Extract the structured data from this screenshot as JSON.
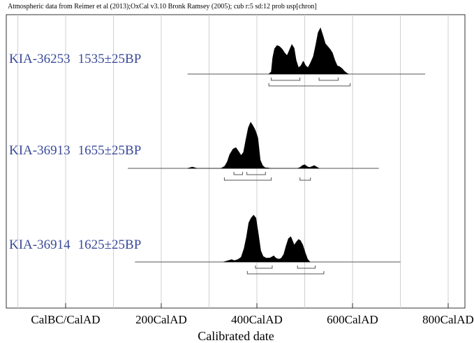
{
  "chart_data": {
    "type": "area",
    "title": "Atmospheric data from Reimer et al (2013);OxCal v3.10 Bronk Ramsey (2005); cub r:5 sd:12 prob usp[chron]",
    "xlabel": "Calibrated date",
    "x_ticks": [
      {
        "value": 0,
        "label": "CalBC/CalAD"
      },
      {
        "value": 200,
        "label": "200CalAD"
      },
      {
        "value": 400,
        "label": "400CalAD"
      },
      {
        "value": 600,
        "label": "600CalAD"
      },
      {
        "value": 800,
        "label": "800CalAD"
      }
    ],
    "xlim": [
      -125,
      825
    ],
    "grid": true,
    "series": [
      {
        "name": "KIA-36253",
        "age": "1535±25BP",
        "range_start": 255,
        "range_end": 752,
        "density": [
          [
            425,
            0
          ],
          [
            430,
            0.05
          ],
          [
            433,
            0.35
          ],
          [
            437,
            0.55
          ],
          [
            442,
            0.62
          ],
          [
            447,
            0.6
          ],
          [
            453,
            0.54
          ],
          [
            458,
            0.46
          ],
          [
            463,
            0.4
          ],
          [
            468,
            0.52
          ],
          [
            473,
            0.64
          ],
          [
            478,
            0.56
          ],
          [
            482,
            0.3
          ],
          [
            487,
            0.14
          ],
          [
            492,
            0.18
          ],
          [
            497,
            0.28
          ],
          [
            502,
            0.18
          ],
          [
            507,
            0.14
          ],
          [
            512,
            0.24
          ],
          [
            518,
            0.38
          ],
          [
            523,
            0.63
          ],
          [
            528,
            0.9
          ],
          [
            533,
            1.0
          ],
          [
            538,
            0.84
          ],
          [
            543,
            0.66
          ],
          [
            548,
            0.6
          ],
          [
            553,
            0.54
          ],
          [
            558,
            0.46
          ],
          [
            563,
            0.3
          ],
          [
            568,
            0.18
          ],
          [
            573,
            0.16
          ],
          [
            578,
            0.12
          ],
          [
            583,
            0.06
          ],
          [
            588,
            0.02
          ],
          [
            592,
            0
          ]
        ],
        "sigma1": [
          [
            430,
            490
          ],
          [
            530,
            570
          ]
        ],
        "sigma2": [
          [
            425,
            595
          ]
        ]
      },
      {
        "name": "KIA-36913",
        "age": "1655±25BP",
        "range_start": 130,
        "range_end": 655,
        "density": [
          [
            255,
            0
          ],
          [
            260,
            0.015
          ],
          [
            265,
            0.03
          ],
          [
            270,
            0.015
          ],
          [
            275,
            0
          ],
          [
            325,
            0
          ],
          [
            333,
            0.05
          ],
          [
            338,
            0.14
          ],
          [
            343,
            0.3
          ],
          [
            350,
            0.42
          ],
          [
            356,
            0.45
          ],
          [
            362,
            0.36
          ],
          [
            367,
            0.28
          ],
          [
            372,
            0.35
          ],
          [
            377,
            0.62
          ],
          [
            382,
            0.88
          ],
          [
            387,
            1.0
          ],
          [
            392,
            0.92
          ],
          [
            397,
            0.82
          ],
          [
            402,
            0.66
          ],
          [
            407,
            0.18
          ],
          [
            412,
            0.06
          ],
          [
            417,
            0.015
          ],
          [
            422,
            0.01
          ],
          [
            430,
            0
          ],
          [
            485,
            0
          ],
          [
            490,
            0.02
          ],
          [
            495,
            0.06
          ],
          [
            500,
            0.08
          ],
          [
            505,
            0.04
          ],
          [
            510,
            0.02
          ],
          [
            515,
            0.04
          ],
          [
            520,
            0.06
          ],
          [
            525,
            0.03
          ],
          [
            530,
            0
          ]
        ],
        "sigma1": [
          [
            352,
            370
          ],
          [
            379,
            418
          ]
        ],
        "sigma2": [
          [
            332,
            430
          ],
          [
            490,
            512
          ]
        ]
      },
      {
        "name": "KIA-36914",
        "age": "1625±25BP",
        "range_start": 145,
        "range_end": 700,
        "density": [
          [
            330,
            0
          ],
          [
            340,
            0.03
          ],
          [
            347,
            0.05
          ],
          [
            353,
            0.03
          ],
          [
            360,
            0.05
          ],
          [
            367,
            0.1
          ],
          [
            373,
            0.28
          ],
          [
            378,
            0.52
          ],
          [
            383,
            0.84
          ],
          [
            388,
            0.94
          ],
          [
            393,
            1.0
          ],
          [
            398,
            0.94
          ],
          [
            403,
            0.6
          ],
          [
            408,
            0.24
          ],
          [
            413,
            0.12
          ],
          [
            420,
            0.08
          ],
          [
            428,
            0.09
          ],
          [
            435,
            0.13
          ],
          [
            440,
            0.08
          ],
          [
            446,
            0.06
          ],
          [
            451,
            0.08
          ],
          [
            456,
            0.16
          ],
          [
            461,
            0.34
          ],
          [
            466,
            0.5
          ],
          [
            471,
            0.54
          ],
          [
            475,
            0.44
          ],
          [
            478,
            0.36
          ],
          [
            482,
            0.42
          ],
          [
            487,
            0.48
          ],
          [
            491,
            0.46
          ],
          [
            496,
            0.36
          ],
          [
            501,
            0.2
          ],
          [
            506,
            0.06
          ],
          [
            511,
            0
          ]
        ],
        "sigma1": [
          [
            397,
            432
          ],
          [
            485,
            522
          ]
        ],
        "sigma2": [
          [
            380,
            540
          ]
        ]
      }
    ]
  }
}
